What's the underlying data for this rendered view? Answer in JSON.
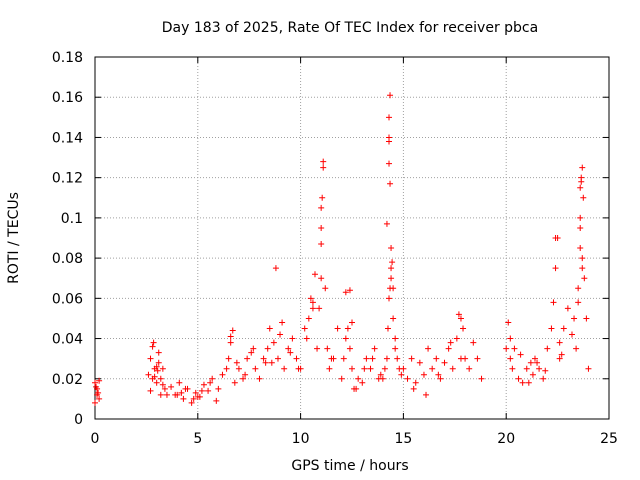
{
  "chart_data": {
    "type": "scatter",
    "title": "Day 183 of 2025, Rate Of TEC Index for receiver pbca",
    "xlabel": "GPS time / hours",
    "ylabel": "ROTI / TECUs",
    "xlim": [
      0,
      25
    ],
    "ylim": [
      0,
      0.18
    ],
    "x_ticks": [
      "0",
      "5",
      "10",
      "15",
      "20",
      "25"
    ],
    "y_ticks": [
      "0",
      "0.02",
      "0.04",
      "0.06",
      "0.08",
      "0.1",
      "0.12",
      "0.14",
      "0.16",
      "0.18"
    ],
    "grid": true,
    "marker": "+",
    "color": "#ff0000",
    "series": [
      {
        "x": [
          0.0,
          0.1,
          0.2,
          0.0,
          0.1,
          0.2,
          0.05,
          0.15,
          2.6,
          2.7,
          2.8,
          2.9,
          3.0,
          3.1,
          3.2,
          3.3,
          3.4,
          3.5,
          2.7,
          2.9,
          3.1,
          3.3,
          2.8,
          3.0,
          3.2,
          2.85,
          3.05,
          3.7,
          3.9,
          4.1,
          4.3,
          4.5,
          4.7,
          4.9,
          5.1,
          5.3,
          5.5,
          5.7,
          5.9,
          4.0,
          4.4,
          4.8,
          5.2,
          5.6,
          4.2,
          5.0,
          6.0,
          6.2,
          6.4,
          6.5,
          6.6,
          6.7,
          6.8,
          7.0,
          7.2,
          7.4,
          7.6,
          7.8,
          6.6,
          6.9,
          7.3,
          7.7,
          8.0,
          8.2,
          8.4,
          8.5,
          8.6,
          8.8,
          8.9,
          9.0,
          9.2,
          9.4,
          9.6,
          9.8,
          8.3,
          8.7,
          9.1,
          9.5,
          9.9,
          10.0,
          10.2,
          10.4,
          10.5,
          10.6,
          10.7,
          10.8,
          10.9,
          11.0,
          11.0,
          11.05,
          11.1,
          11.1,
          11.0,
          11.2,
          11.3,
          11.4,
          11.6,
          11.8,
          10.3,
          10.6,
          11.0,
          11.5,
          12.0,
          12.1,
          12.2,
          12.3,
          12.4,
          12.5,
          12.6,
          12.8,
          13.0,
          13.2,
          13.4,
          13.6,
          13.8,
          12.2,
          12.7,
          13.1,
          13.5,
          13.9,
          12.4,
          12.5,
          14.0,
          14.1,
          14.2,
          14.25,
          14.3,
          14.35,
          14.4,
          14.4,
          14.45,
          14.5,
          14.6,
          14.7,
          14.8,
          14.9,
          14.3,
          14.4,
          14.5,
          14.2,
          14.6,
          14.35,
          14.3,
          14.3,
          14.3,
          14.35,
          15.0,
          15.2,
          15.4,
          15.6,
          15.8,
          16.0,
          16.2,
          16.4,
          16.6,
          16.8,
          17.0,
          17.2,
          17.4,
          17.6,
          17.8,
          15.5,
          16.1,
          16.7,
          17.3,
          17.9,
          18.0,
          18.2,
          18.4,
          18.6,
          18.8,
          17.7,
          17.8,
          17.9,
          20.0,
          20.1,
          20.2,
          20.3,
          20.4,
          20.6,
          20.8,
          21.0,
          21.2,
          21.3,
          21.4,
          21.6,
          21.8,
          22.0,
          20.2,
          20.7,
          21.1,
          21.5,
          21.9,
          22.2,
          22.3,
          22.4,
          22.5,
          22.6,
          22.7,
          22.8,
          23.0,
          23.2,
          23.4,
          23.5,
          23.6,
          23.6,
          23.65,
          23.7,
          23.75,
          23.8,
          23.9,
          24.0,
          22.4,
          22.6,
          23.3,
          23.5,
          23.7,
          23.6,
          23.6,
          23.65,
          23.7
        ],
        "y": [
          0.018,
          0.012,
          0.019,
          0.008,
          0.015,
          0.01,
          0.016,
          0.013,
          0.022,
          0.03,
          0.036,
          0.025,
          0.018,
          0.028,
          0.02,
          0.025,
          0.015,
          0.012,
          0.014,
          0.021,
          0.033,
          0.017,
          0.02,
          0.026,
          0.012,
          0.038,
          0.024,
          0.016,
          0.012,
          0.018,
          0.01,
          0.015,
          0.008,
          0.013,
          0.011,
          0.017,
          0.014,
          0.02,
          0.009,
          0.012,
          0.015,
          0.01,
          0.014,
          0.018,
          0.013,
          0.011,
          0.015,
          0.022,
          0.025,
          0.03,
          0.038,
          0.044,
          0.018,
          0.025,
          0.02,
          0.03,
          0.033,
          0.025,
          0.041,
          0.028,
          0.022,
          0.035,
          0.02,
          0.03,
          0.035,
          0.045,
          0.028,
          0.075,
          0.03,
          0.042,
          0.025,
          0.035,
          0.04,
          0.03,
          0.028,
          0.038,
          0.048,
          0.033,
          0.025,
          0.025,
          0.045,
          0.05,
          0.06,
          0.055,
          0.072,
          0.035,
          0.055,
          0.07,
          0.105,
          0.11,
          0.125,
          0.128,
          0.095,
          0.065,
          0.035,
          0.025,
          0.03,
          0.045,
          0.04,
          0.058,
          0.087,
          0.03,
          0.02,
          0.03,
          0.063,
          0.045,
          0.035,
          0.025,
          0.015,
          0.02,
          0.018,
          0.03,
          0.025,
          0.035,
          0.02,
          0.04,
          0.015,
          0.025,
          0.03,
          0.022,
          0.064,
          0.048,
          0.02,
          0.025,
          0.03,
          0.045,
          0.06,
          0.065,
          0.07,
          0.075,
          0.078,
          0.05,
          0.04,
          0.03,
          0.025,
          0.022,
          0.138,
          0.085,
          0.065,
          0.097,
          0.035,
          0.161,
          0.14,
          0.127,
          0.15,
          0.117,
          0.025,
          0.02,
          0.03,
          0.018,
          0.028,
          0.022,
          0.035,
          0.025,
          0.03,
          0.02,
          0.028,
          0.035,
          0.025,
          0.04,
          0.03,
          0.015,
          0.012,
          0.022,
          0.038,
          0.045,
          0.03,
          0.025,
          0.038,
          0.03,
          0.02,
          0.052,
          0.05,
          0.045,
          0.035,
          0.048,
          0.03,
          0.025,
          0.035,
          0.02,
          0.018,
          0.025,
          0.028,
          0.022,
          0.03,
          0.025,
          0.02,
          0.035,
          0.04,
          0.032,
          0.018,
          0.028,
          0.024,
          0.045,
          0.058,
          0.075,
          0.09,
          0.038,
          0.032,
          0.045,
          0.055,
          0.042,
          0.035,
          0.065,
          0.085,
          0.095,
          0.12,
          0.125,
          0.11,
          0.07,
          0.05,
          0.025,
          0.09,
          0.03,
          0.05,
          0.058,
          0.075,
          0.115,
          0.1,
          0.118,
          0.08
        ]
      }
    ]
  }
}
